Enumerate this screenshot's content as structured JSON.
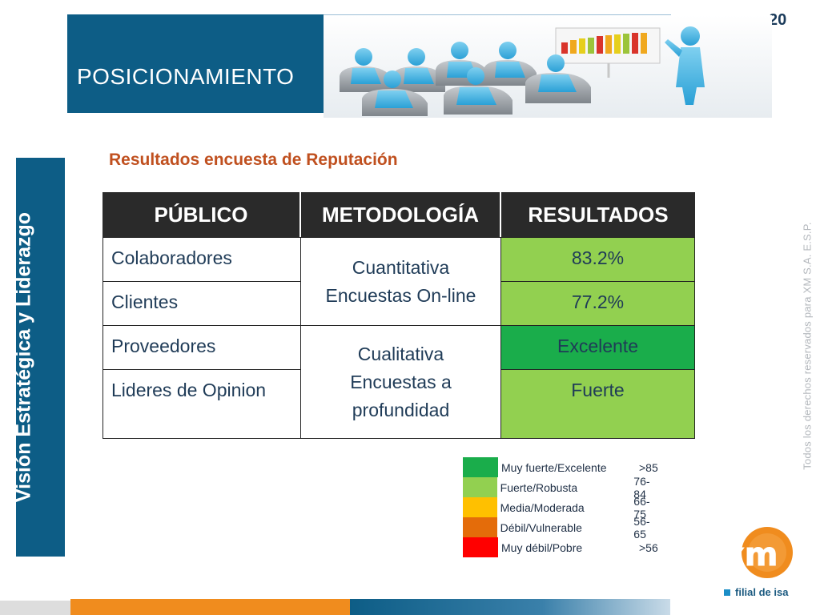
{
  "slide": {
    "page_number": "20",
    "header_title": "POSICIONAMIENTO",
    "side_banner": "Visión Estratégica y Liderazgo",
    "copyright": "Todos los derechos reservados para XM S.A. E.S.P."
  },
  "survey": {
    "title": "Resultados encuesta de Reputación",
    "columns": [
      "PÚBLICO",
      "METODOLOGÍA",
      "RESULTADOS"
    ],
    "rows": [
      {
        "publico": "Colaboradores",
        "resultado": "83.2%"
      },
      {
        "publico": "Clientes",
        "resultado": "77.2%"
      },
      {
        "publico": "Proveedores",
        "resultado": "Excelente"
      },
      {
        "publico": "Lideres de Opinion",
        "resultado": "Fuerte"
      }
    ],
    "methods": [
      {
        "line1": "Cuantitativa",
        "line2": "Encuestas On-line"
      },
      {
        "line1": "Cualitativa",
        "line2": "Encuestas a profundidad"
      }
    ]
  },
  "legend": [
    {
      "label": "Muy fuerte/Excelente",
      "range": ">85",
      "color": "#1aad4b"
    },
    {
      "label": "Fuerte/Robusta",
      "range": "76-84",
      "color": "#92d050"
    },
    {
      "label": "Media/Moderada",
      "range": "66-75",
      "color": "#ffc000"
    },
    {
      "label": "Débil/Vulnerable",
      "range": "56-65",
      "color": "#e46c0a"
    },
    {
      "label": "Muy débil/Pobre",
      "range": ">56",
      "color": "#ff0000"
    }
  ],
  "colors": {
    "excelente": "#1aad4b",
    "fuerte": "#92d050",
    "brand_blue": "#0d5d86",
    "brand_orange": "#f08c1e"
  },
  "logo": {
    "subtitle": "filial de isa"
  }
}
